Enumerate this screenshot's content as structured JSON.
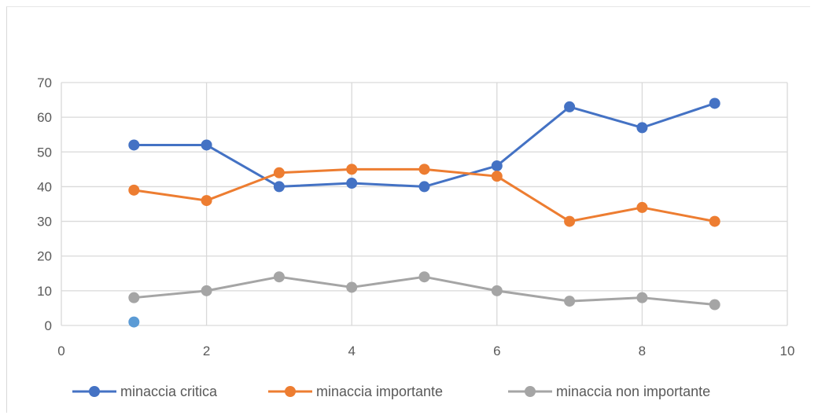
{
  "chart_data": {
    "type": "scatter",
    "title": "",
    "xlabel": "",
    "ylabel": "",
    "xlim": [
      0,
      10
    ],
    "ylim": [
      0,
      70
    ],
    "x_ticks": [
      0,
      2,
      4,
      6,
      8,
      10
    ],
    "y_ticks": [
      0,
      10,
      20,
      30,
      40,
      50,
      60,
      70
    ],
    "grid": true,
    "legend_position": "bottom",
    "series": [
      {
        "name": "minaccia critica",
        "color": "#4472c4",
        "x": [
          1,
          2,
          3,
          4,
          5,
          6,
          7,
          8,
          9
        ],
        "y": [
          52,
          52,
          40,
          41,
          40,
          46,
          63,
          57,
          64
        ]
      },
      {
        "name": "minaccia importante",
        "color": "#ed7d31",
        "x": [
          1,
          2,
          3,
          4,
          5,
          6,
          7,
          8,
          9
        ],
        "y": [
          39,
          36,
          44,
          45,
          45,
          43,
          30,
          34,
          30
        ]
      },
      {
        "name": "minaccia non importante",
        "color": "#a5a5a5",
        "x": [
          1,
          2,
          3,
          4,
          5,
          6,
          7,
          8,
          9
        ],
        "y": [
          8,
          10,
          14,
          11,
          14,
          10,
          7,
          8,
          6
        ]
      }
    ],
    "extra_points": [
      {
        "x": 1,
        "y": 1,
        "color": "#5b9bd5"
      }
    ]
  }
}
